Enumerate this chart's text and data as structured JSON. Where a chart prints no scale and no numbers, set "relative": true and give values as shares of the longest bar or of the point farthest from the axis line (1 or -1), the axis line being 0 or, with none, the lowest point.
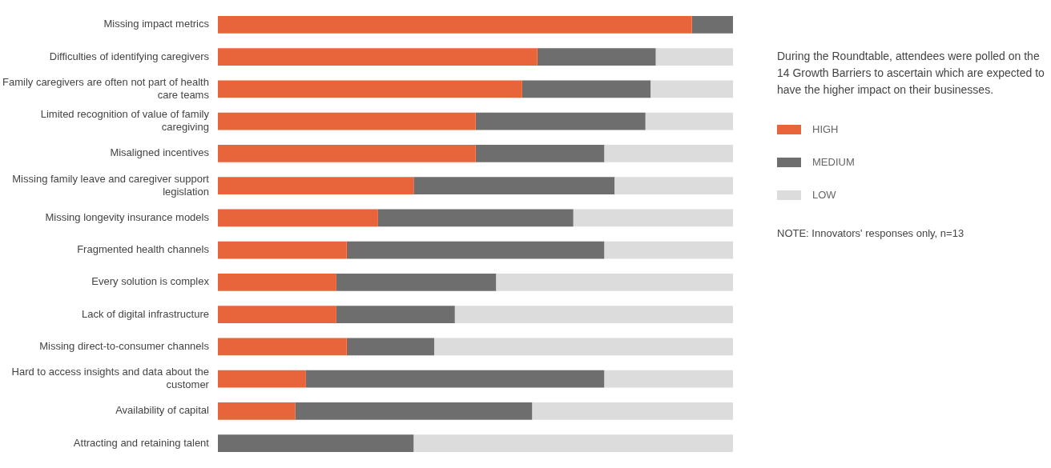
{
  "chart_data": {
    "type": "bar",
    "orientation": "horizontal",
    "stacked": true,
    "relative": true,
    "legend": "right",
    "categories": [
      "Missing impact metrics",
      "Difficulties of identifying caregivers",
      "Family caregivers are often not part of health care teams",
      "Limited recognition of value of family caregiving",
      "Misaligned incentives",
      "Missing family leave and caregiver support legislation",
      "Missing longevity insurance models",
      "Fragmented health channels",
      "Every solution is complex",
      "Lack of digital infrastructure",
      "Missing direct-to-consumer channels",
      "Hard to access insights and data about the customer",
      "Availability of capital",
      "Attracting and retaining talent"
    ],
    "series": [
      {
        "name": "HIGH",
        "color": "#e8643a",
        "values": [
          0.92,
          0.62,
          0.59,
          0.5,
          0.5,
          0.38,
          0.31,
          0.25,
          0.23,
          0.23,
          0.25,
          0.17,
          0.15,
          0
        ]
      },
      {
        "name": "MEDIUM",
        "color": "#6e6e6e",
        "values": [
          0.08,
          0.23,
          0.25,
          0.33,
          0.25,
          0.39,
          0.38,
          0.5,
          0.31,
          0.23,
          0.17,
          0.58,
          0.46,
          0.38
        ]
      },
      {
        "name": "LOW",
        "color": "#dcdcdc",
        "values": [
          0,
          0.15,
          0.16,
          0.17,
          0.25,
          0.23,
          0.31,
          0.25,
          0.46,
          0.54,
          0.58,
          0.25,
          0.39,
          0.62
        ]
      }
    ],
    "annotations": [
      "During the Roundtable, attendees were polled on the 14 Growth Barriers to ascertain which are expected to have the higher impact on their businesses.",
      "NOTE: Innovators' responses only, n=13"
    ]
  }
}
